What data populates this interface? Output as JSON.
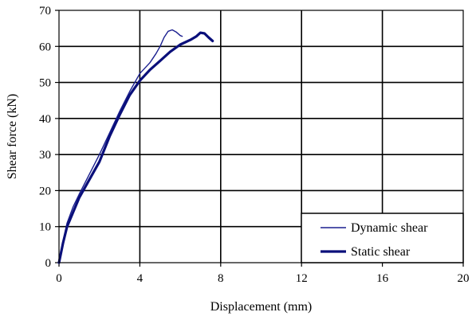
{
  "chart_data": {
    "type": "line",
    "xlabel": "Displacement (mm)",
    "ylabel": "Shear force (kN)",
    "xlim": [
      0,
      20
    ],
    "ylim": [
      0,
      70
    ],
    "x_ticks": [
      "0",
      "4",
      "8",
      "12",
      "16",
      "20"
    ],
    "y_ticks": [
      "0",
      "10",
      "20",
      "30",
      "40",
      "50",
      "60",
      "70"
    ],
    "grid": true,
    "legend_position": "bottom-right",
    "series": [
      {
        "name": "Dynamic shear",
        "color": "#1a1f8f",
        "line_weight": "thin",
        "x": [
          0,
          0.2,
          0.4,
          0.7,
          1.0,
          1.5,
          2.0,
          2.5,
          3.0,
          3.5,
          4.0,
          4.5,
          4.8,
          5.0,
          5.2,
          5.4,
          5.6,
          5.8,
          6.0,
          6.1
        ],
        "y": [
          0,
          6,
          11,
          15.5,
          19,
          24.5,
          30,
          36,
          42,
          47.5,
          52.5,
          55.5,
          58,
          60,
          62.5,
          64.2,
          64.6,
          64.0,
          63.0,
          62.8
        ]
      },
      {
        "name": "Static shear",
        "color": "#0a0f7a",
        "line_weight": "thick",
        "x": [
          0,
          0.2,
          0.4,
          0.7,
          1.0,
          1.5,
          2.0,
          2.5,
          3.0,
          3.5,
          4.0,
          4.5,
          5.0,
          5.5,
          6.0,
          6.5,
          6.8,
          7.0,
          7.2,
          7.4,
          7.6
        ],
        "y": [
          0,
          5.5,
          10,
          14,
          18,
          23,
          28,
          35,
          41,
          46.5,
          50.5,
          53.5,
          56,
          58.5,
          60.5,
          61.8,
          62.8,
          63.8,
          63.6,
          62.5,
          61.5
        ]
      }
    ]
  }
}
